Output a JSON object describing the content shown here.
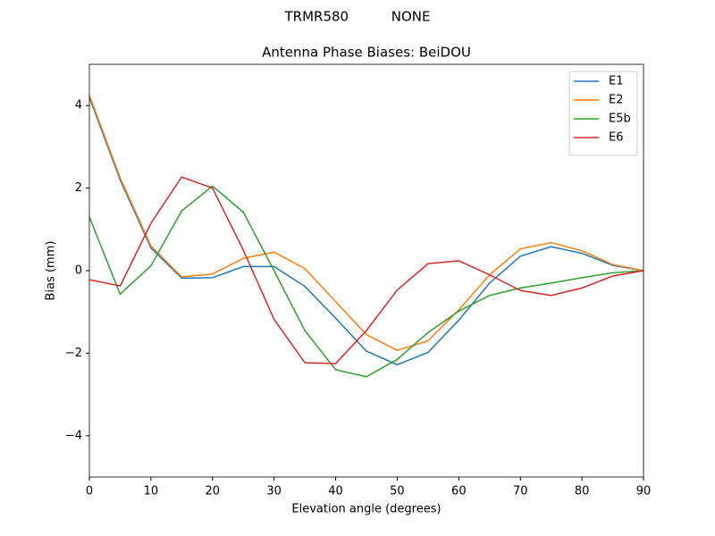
{
  "chart_data": {
    "type": "line",
    "suptitle": "TRMR580          NONE",
    "title": "Antenna Phase Biases: BeiDOU",
    "xlabel": "Elevation angle (degrees)",
    "ylabel": "Bias (mm)",
    "x": [
      0,
      5,
      10,
      15,
      20,
      25,
      30,
      35,
      40,
      45,
      50,
      55,
      60,
      65,
      70,
      75,
      80,
      85,
      90
    ],
    "series": [
      {
        "name": "E1",
        "color": "#1f77b4",
        "values": [
          4.2,
          2.2,
          0.55,
          -0.18,
          -0.17,
          0.1,
          0.1,
          -0.38,
          -1.15,
          -1.95,
          -2.28,
          -1.98,
          -1.2,
          -0.3,
          0.35,
          0.58,
          0.42,
          0.13,
          0
        ]
      },
      {
        "name": "E2",
        "color": "#ff7f0e",
        "values": [
          4.25,
          2.25,
          0.6,
          -0.15,
          -0.08,
          0.3,
          0.45,
          0.05,
          -0.75,
          -1.55,
          -1.93,
          -1.7,
          -0.95,
          -0.1,
          0.53,
          0.68,
          0.48,
          0.15,
          0
        ]
      },
      {
        "name": "E5b",
        "color": "#2ca02c",
        "values": [
          1.3,
          -0.57,
          0.12,
          1.45,
          2.05,
          1.42,
          0.0,
          -1.45,
          -2.4,
          -2.57,
          -2.15,
          -1.5,
          -0.98,
          -0.6,
          -0.42,
          -0.3,
          -0.17,
          -0.05,
          0
        ]
      },
      {
        "name": "E6",
        "color": "#d62728",
        "values": [
          -0.22,
          -0.37,
          1.15,
          2.27,
          2.0,
          0.5,
          -1.18,
          -2.23,
          -2.25,
          -1.45,
          -0.47,
          0.17,
          0.24,
          -0.1,
          -0.48,
          -0.6,
          -0.42,
          -0.13,
          0
        ]
      }
    ],
    "xlim": [
      0,
      90
    ],
    "xticks": [
      0,
      10,
      20,
      30,
      40,
      50,
      60,
      70,
      80,
      90
    ],
    "ylim": [
      -5,
      5
    ],
    "yticks": [
      {
        "value": -4,
        "label": "−4"
      },
      {
        "value": -2,
        "label": "−2"
      },
      0,
      2,
      4
    ],
    "legend": "upper right"
  }
}
